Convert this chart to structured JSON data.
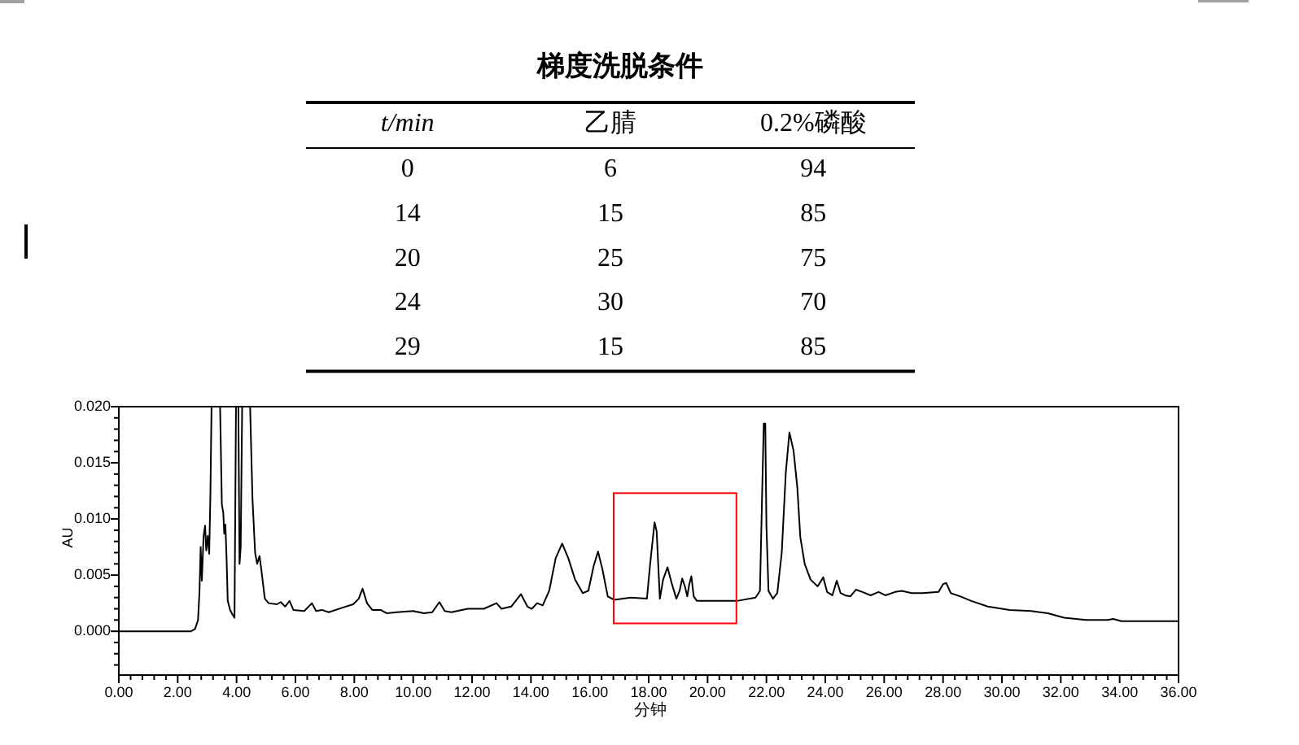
{
  "chart_data": [
    {
      "type": "other",
      "title": "梯度洗脱条件",
      "categories": [
        "t/min",
        "乙腈",
        "0.2%磷酸"
      ],
      "annotations": [
        "0",
        "6",
        "94",
        "14",
        "15",
        "85",
        "20",
        "25",
        "75",
        "24",
        "30",
        "70",
        "29",
        "15",
        "85"
      ]
    },
    {
      "type": "line",
      "xlabel": "分钟",
      "ylabel": "AU",
      "color": "#000000",
      "xlim": [
        0,
        36
      ],
      "ylim": [
        -0.0039,
        0.02
      ],
      "xticks": [
        {
          "value": 0,
          "label": "0.00"
        },
        {
          "value": 0.4,
          "label": null
        },
        {
          "value": 0.8,
          "label": null
        },
        {
          "value": 1.2,
          "label": null
        },
        {
          "value": 1.6,
          "label": null
        },
        {
          "value": 2,
          "label": "2.00"
        },
        {
          "value": 2.4,
          "label": null
        },
        {
          "value": 2.8,
          "label": null
        },
        {
          "value": 3.2,
          "label": null
        },
        {
          "value": 3.6,
          "label": null
        },
        {
          "value": 4,
          "label": "4.00"
        },
        {
          "value": 4.4,
          "label": null
        },
        {
          "value": 4.8,
          "label": null
        },
        {
          "value": 5.2,
          "label": null
        },
        {
          "value": 5.6,
          "label": null
        },
        {
          "value": 6,
          "label": "6.00"
        },
        {
          "value": 6.4,
          "label": null
        },
        {
          "value": 6.8,
          "label": null
        },
        {
          "value": 7.2,
          "label": null
        },
        {
          "value": 7.6,
          "label": null
        },
        {
          "value": 8,
          "label": "8.00"
        },
        {
          "value": 8.4,
          "label": null
        },
        {
          "value": 8.8,
          "label": null
        },
        {
          "value": 9.2,
          "label": null
        },
        {
          "value": 9.6,
          "label": null
        },
        {
          "value": 10,
          "label": "10.00"
        },
        {
          "value": 10.4,
          "label": null
        },
        {
          "value": 10.8,
          "label": null
        },
        {
          "value": 11.2,
          "label": null
        },
        {
          "value": 11.6,
          "label": null
        },
        {
          "value": 12,
          "label": "12.00"
        },
        {
          "value": 12.4,
          "label": null
        },
        {
          "value": 12.8,
          "label": null
        },
        {
          "value": 13.2,
          "label": null
        },
        {
          "value": 13.6,
          "label": null
        },
        {
          "value": 14,
          "label": "14.00"
        },
        {
          "value": 14.4,
          "label": null
        },
        {
          "value": 14.8,
          "label": null
        },
        {
          "value": 15.2,
          "label": null
        },
        {
          "value": 15.6,
          "label": null
        },
        {
          "value": 16,
          "label": "16.00"
        },
        {
          "value": 16.4,
          "label": null
        },
        {
          "value": 16.8,
          "label": null
        },
        {
          "value": 17.2,
          "label": null
        },
        {
          "value": 17.6,
          "label": null
        },
        {
          "value": 18,
          "label": "18.00"
        },
        {
          "value": 18.4,
          "label": null
        },
        {
          "value": 18.8,
          "label": null
        },
        {
          "value": 19.2,
          "label": null
        },
        {
          "value": 19.6,
          "label": null
        },
        {
          "value": 20,
          "label": "20.00"
        },
        {
          "value": 20.4,
          "label": null
        },
        {
          "value": 20.8,
          "label": null
        },
        {
          "value": 21.2,
          "label": null
        },
        {
          "value": 21.6,
          "label": null
        },
        {
          "value": 22,
          "label": "22.00"
        },
        {
          "value": 22.4,
          "label": null
        },
        {
          "value": 22.8,
          "label": null
        },
        {
          "value": 23.2,
          "label": null
        },
        {
          "value": 23.6,
          "label": null
        },
        {
          "value": 24,
          "label": "24.00"
        },
        {
          "value": 24.4,
          "label": null
        },
        {
          "value": 24.8,
          "label": null
        },
        {
          "value": 25.2,
          "label": null
        },
        {
          "value": 25.6,
          "label": null
        },
        {
          "value": 26,
          "label": "26.00"
        },
        {
          "value": 26.4,
          "label": null
        },
        {
          "value": 26.8,
          "label": null
        },
        {
          "value": 27.2,
          "label": null
        },
        {
          "value": 27.6,
          "label": null
        },
        {
          "value": 28,
          "label": "28.00"
        },
        {
          "value": 28.4,
          "label": null
        },
        {
          "value": 28.8,
          "label": null
        },
        {
          "value": 29.2,
          "label": null
        },
        {
          "value": 29.6,
          "label": null
        },
        {
          "value": 30,
          "label": "30.00"
        },
        {
          "value": 30.4,
          "label": null
        },
        {
          "value": 30.8,
          "label": null
        },
        {
          "value": 31.2,
          "label": null
        },
        {
          "value": 31.6,
          "label": null
        },
        {
          "value": 32,
          "label": "32.00"
        },
        {
          "value": 32.4,
          "label": null
        },
        {
          "value": 32.8,
          "label": null
        },
        {
          "value": 33.2,
          "label": null
        },
        {
          "value": 33.6,
          "label": null
        },
        {
          "value": 34,
          "label": "34.00"
        },
        {
          "value": 34.4,
          "label": null
        },
        {
          "value": 34.8,
          "label": null
        },
        {
          "value": 35.2,
          "label": null
        },
        {
          "value": 35.6,
          "label": null
        },
        {
          "value": 36,
          "label": "36.00"
        }
      ],
      "yticks": [
        {
          "value": -0.003,
          "label": null
        },
        {
          "value": -0.002,
          "label": null
        },
        {
          "value": -0.001,
          "label": null
        },
        {
          "value": 0,
          "label": "0.000"
        },
        {
          "value": 0.001,
          "label": null
        },
        {
          "value": 0.002,
          "label": null
        },
        {
          "value": 0.003,
          "label": null
        },
        {
          "value": 0.004,
          "label": null
        },
        {
          "value": 0.005,
          "label": "0.005"
        },
        {
          "value": 0.006,
          "label": null
        },
        {
          "value": 0.007,
          "label": null
        },
        {
          "value": 0.008,
          "label": null
        },
        {
          "value": 0.009,
          "label": null
        },
        {
          "value": 0.01,
          "label": "0.010"
        },
        {
          "value": 0.011,
          "label": null
        },
        {
          "value": 0.012,
          "label": null
        },
        {
          "value": 0.013,
          "label": null
        },
        {
          "value": 0.014,
          "label": null
        },
        {
          "value": 0.015,
          "label": "0.015"
        },
        {
          "value": 0.016,
          "label": null
        },
        {
          "value": 0.017,
          "label": null
        },
        {
          "value": 0.018,
          "label": null
        },
        {
          "value": 0.019,
          "label": null
        },
        {
          "value": 0.02,
          "label": "0.020"
        }
      ],
      "x": [
        0,
        2.45,
        2.59,
        2.69,
        2.74,
        2.78,
        2.82,
        2.88,
        2.93,
        2.97,
        3.02,
        3.07,
        3.11,
        3.15,
        3.44,
        3.5,
        3.55,
        3.58,
        3.62,
        3.66,
        3.7,
        3.78,
        3.86,
        3.93,
        3.98,
        4.06,
        4.1,
        4.14,
        4.19,
        4.46,
        4.54,
        4.63,
        4.7,
        4.78,
        4.84,
        4.96,
        5.09,
        5.37,
        5.5,
        5.65,
        5.8,
        5.93,
        6.3,
        6.56,
        6.7,
        6.9,
        7.13,
        7.6,
        7.96,
        8.15,
        8.28,
        8.43,
        8.61,
        8.89,
        9.11,
        9.44,
        10,
        10.37,
        10.65,
        10.89,
        11.07,
        11.3,
        11.85,
        12.4,
        12.83,
        13,
        13.33,
        13.66,
        13.88,
        14.03,
        14.21,
        14.4,
        14.62,
        14.84,
        15.06,
        15.27,
        15.5,
        15.76,
        15.95,
        16.13,
        16.28,
        16.43,
        16.61,
        16.83,
        17.39,
        17.94,
        18.05,
        18.2,
        18.27,
        18.38,
        18.49,
        18.64,
        18.79,
        18.94,
        19.05,
        19.14,
        19.24,
        19.31,
        19.38,
        19.45,
        19.53,
        19.64,
        20.52,
        21,
        21.63,
        21.78,
        21.85,
        21.91,
        21.96,
        22,
        22.07,
        22.22,
        22.37,
        22.52,
        22.66,
        22.78,
        22.92,
        23.05,
        23.15,
        23.3,
        23.5,
        23.74,
        23.93,
        24.06,
        24.24,
        24.39,
        24.52,
        24.67,
        24.85,
        25.04,
        25.26,
        25.54,
        25.81,
        26.04,
        26.37,
        26.6,
        26.93,
        27.3,
        27.85,
        28,
        28.11,
        28.26,
        28.59,
        28.96,
        29.52,
        30.26,
        31,
        31.56,
        32.11,
        32.85,
        33.59,
        33.78,
        34.06,
        36
      ],
      "values": [
        0,
        0,
        0.0002,
        0.001,
        0.0035,
        0.0075,
        0.0045,
        0.0085,
        0.0094,
        0.0072,
        0.0085,
        0.0069,
        0.012,
        0.02,
        0.02,
        0.0113,
        0.0105,
        0.0087,
        0.0095,
        0.0065,
        0.0027,
        0.0019,
        0.0015,
        0.0012,
        0.02,
        0.02,
        0.006,
        0.0075,
        0.02,
        0.02,
        0.0118,
        0.007,
        0.006,
        0.0067,
        0.0055,
        0.0029,
        0.0025,
        0.0024,
        0.0026,
        0.0022,
        0.0027,
        0.0019,
        0.0018,
        0.0025,
        0.0018,
        0.0019,
        0.0017,
        0.0021,
        0.0024,
        0.0029,
        0.0038,
        0.0025,
        0.0019,
        0.0019,
        0.0016,
        0.0017,
        0.0018,
        0.0016,
        0.0017,
        0.0026,
        0.0018,
        0.0017,
        0.002,
        0.002,
        0.0025,
        0.002,
        0.0022,
        0.0033,
        0.0022,
        0.002,
        0.0025,
        0.0023,
        0.0036,
        0.0065,
        0.0078,
        0.0065,
        0.0046,
        0.0034,
        0.0036,
        0.0058,
        0.0071,
        0.0055,
        0.0031,
        0.0028,
        0.003,
        0.0029,
        0.006,
        0.0097,
        0.0089,
        0.0029,
        0.0046,
        0.0057,
        0.0042,
        0.0029,
        0.0036,
        0.0047,
        0.0039,
        0.0031,
        0.0042,
        0.0049,
        0.0031,
        0.0027,
        0.0027,
        0.0027,
        0.003,
        0.0036,
        0.0118,
        0.0185,
        0.0185,
        0.0094,
        0.0036,
        0.0029,
        0.0034,
        0.007,
        0.0142,
        0.0177,
        0.0161,
        0.0128,
        0.0084,
        0.006,
        0.0046,
        0.004,
        0.0048,
        0.0035,
        0.0032,
        0.0045,
        0.0034,
        0.0032,
        0.0031,
        0.0037,
        0.0035,
        0.0032,
        0.0035,
        0.0032,
        0.0035,
        0.0036,
        0.0034,
        0.0034,
        0.0035,
        0.0042,
        0.0043,
        0.0034,
        0.0031,
        0.0027,
        0.0022,
        0.0019,
        0.0018,
        0.0016,
        0.0012,
        0.001,
        0.001,
        0.0011,
        0.0009,
        0.0009
      ]
    }
  ]
}
